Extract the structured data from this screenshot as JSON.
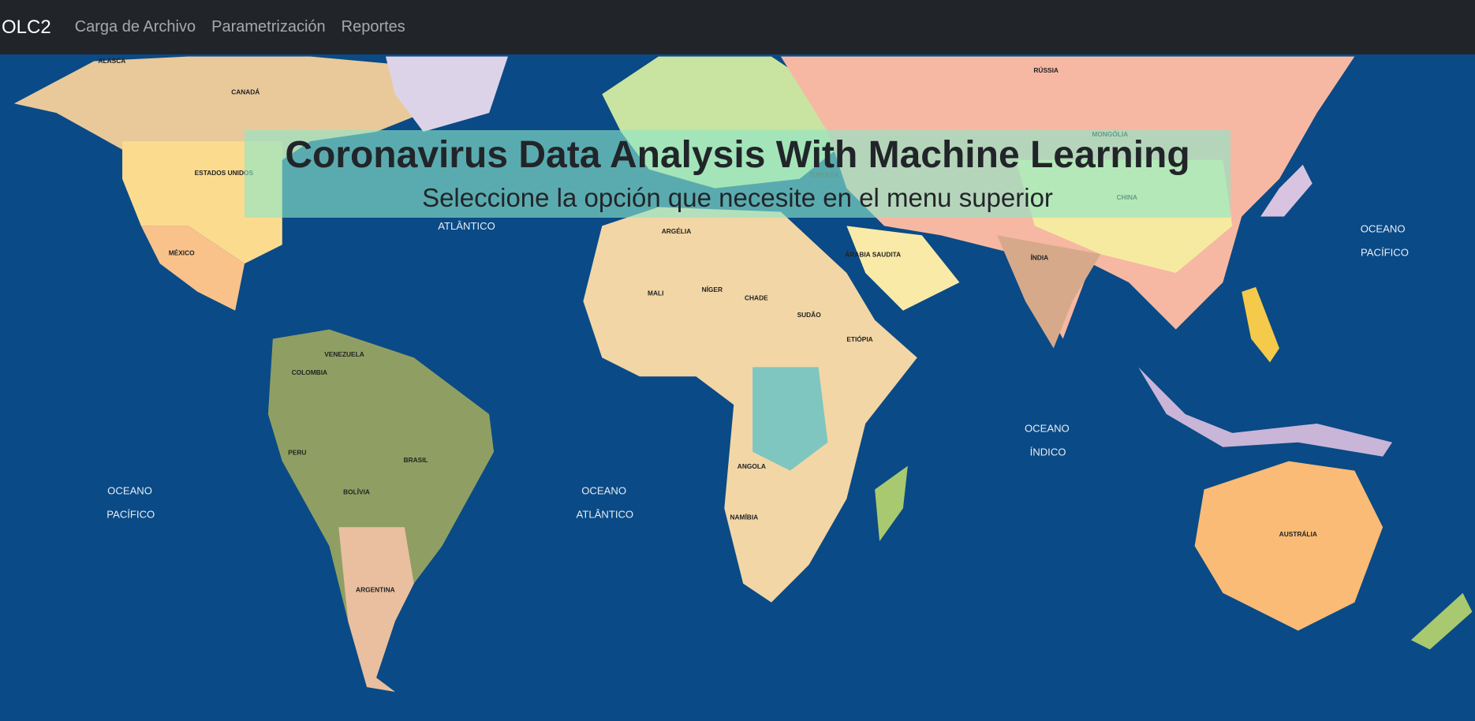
{
  "navbar": {
    "brand": "OLC2",
    "links": [
      "Carga de Archivo",
      "Parametrización",
      "Reportes"
    ]
  },
  "hero": {
    "title": "Coronavirus Data Analysis With Machine Learning",
    "subtitle": "Seleccione la opción que necesite en el menu superior"
  },
  "map": {
    "labels": [
      "ALASCA",
      "CANADÁ",
      "ESTADOS UNIDOS",
      "MÉXICO",
      "ATLÂNTICO",
      "OCEANO",
      "PACÍFICO",
      "VENEZUELA",
      "COLOMBIA",
      "PERU",
      "BRASIL",
      "BOLÍVIA",
      "ARGENTINA",
      "OCEANO",
      "ATLÂNTICO",
      "ARGÉLIA",
      "CHADE",
      "SUDÃO",
      "ANGOLA",
      "NAMÍBIA",
      "RÚSSIA",
      "CHINA",
      "ÍNDIA",
      "MONGÓLIA",
      "TURQUIA",
      "OCEANO",
      "ÍNDICO",
      "OCEANO",
      "PACÍFICO",
      "AUSTRÁLIA",
      "NÍGER",
      "MALI",
      "ETIÓPIA",
      "ÁRABIA SAUDITA"
    ]
  }
}
